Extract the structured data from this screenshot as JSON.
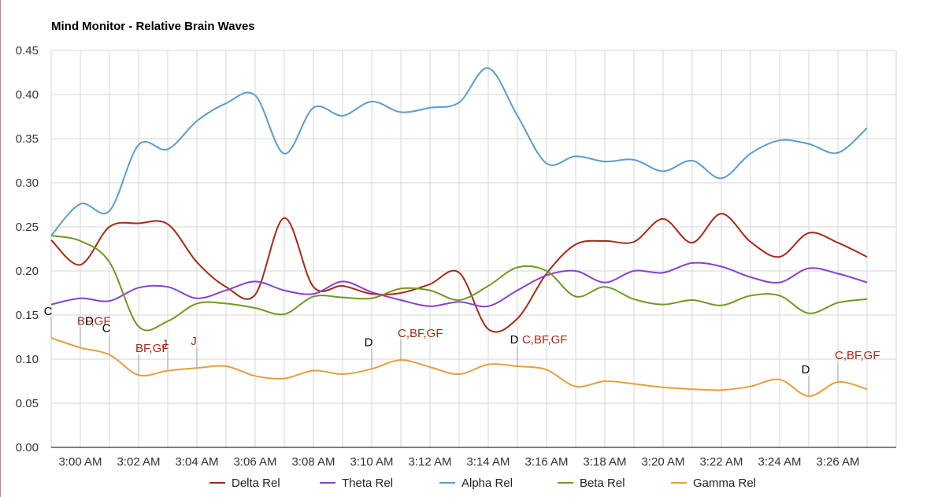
{
  "chart_data": {
    "type": "line",
    "title": "Mind Monitor - Relative Brain Waves",
    "ylim": [
      0,
      0.45
    ],
    "yticks": [
      0,
      0.05,
      0.1,
      0.15,
      0.2,
      0.25,
      0.3,
      0.35,
      0.4,
      0.45
    ],
    "ytick_labels": [
      "0.00",
      "0.05",
      "0.10",
      "0.15",
      "0.20",
      "0.25",
      "0.30",
      "0.35",
      "0.40",
      "0.45"
    ],
    "xlim": [
      -1,
      28
    ],
    "xticks": [
      0,
      2,
      4,
      6,
      8,
      10,
      12,
      14,
      16,
      18,
      20,
      22,
      24,
      26
    ],
    "xtick_labels": [
      "3:00 AM",
      "3:02 AM",
      "3:04 AM",
      "3:06 AM",
      "3:08 AM",
      "3:10 AM",
      "3:12 AM",
      "3:14 AM",
      "3:16 AM",
      "3:18 AM",
      "3:20 AM",
      "3:22 AM",
      "3:24 AM",
      "3:26 AM"
    ],
    "x": [
      -1,
      0,
      1,
      2,
      3,
      4,
      5,
      6,
      7,
      8,
      9,
      10,
      11,
      12,
      13,
      14,
      15,
      16,
      17,
      18,
      19,
      20,
      21,
      22,
      23,
      24,
      25,
      26,
      27
    ],
    "grid": true,
    "legend_position": "bottom",
    "series": [
      {
        "name": "Delta Rel",
        "color": "#a52a14",
        "values": [
          0.235,
          0.207,
          0.25,
          0.254,
          0.253,
          0.21,
          0.182,
          0.173,
          0.26,
          0.182,
          0.183,
          0.174,
          0.175,
          0.185,
          0.198,
          0.134,
          0.146,
          0.197,
          0.23,
          0.234,
          0.233,
          0.259,
          0.232,
          0.265,
          0.233,
          0.216,
          0.243,
          0.232,
          0.216
        ]
      },
      {
        "name": "Theta Rel",
        "color": "#8a3fd0",
        "values": [
          0.162,
          0.169,
          0.166,
          0.181,
          0.182,
          0.169,
          0.178,
          0.188,
          0.178,
          0.174,
          0.188,
          0.176,
          0.167,
          0.16,
          0.165,
          0.16,
          0.178,
          0.195,
          0.2,
          0.187,
          0.2,
          0.198,
          0.209,
          0.205,
          0.193,
          0.187,
          0.203,
          0.197,
          0.187
        ]
      },
      {
        "name": "Alpha Rel",
        "color": "#5b9bd0",
        "values": [
          0.24,
          0.276,
          0.268,
          0.343,
          0.338,
          0.37,
          0.39,
          0.399,
          0.333,
          0.385,
          0.376,
          0.392,
          0.38,
          0.385,
          0.391,
          0.43,
          0.376,
          0.322,
          0.33,
          0.324,
          0.326,
          0.313,
          0.325,
          0.305,
          0.333,
          0.348,
          0.344,
          0.334,
          0.362
        ]
      },
      {
        "name": "Beta Rel",
        "color": "#6e9a1e",
        "values": [
          0.24,
          0.234,
          0.21,
          0.137,
          0.143,
          0.163,
          0.163,
          0.158,
          0.151,
          0.171,
          0.17,
          0.169,
          0.18,
          0.178,
          0.167,
          0.183,
          0.204,
          0.2,
          0.171,
          0.182,
          0.168,
          0.162,
          0.167,
          0.161,
          0.172,
          0.172,
          0.152,
          0.164,
          0.168
        ]
      },
      {
        "name": "Gamma Rel",
        "color": "#e2a13e",
        "values": [
          0.124,
          0.113,
          0.105,
          0.082,
          0.087,
          0.09,
          0.092,
          0.081,
          0.078,
          0.087,
          0.083,
          0.089,
          0.099,
          0.091,
          0.083,
          0.094,
          0.092,
          0.088,
          0.069,
          0.075,
          0.072,
          0.068,
          0.066,
          0.065,
          0.069,
          0.077,
          0.058,
          0.074,
          0.066
        ]
      }
    ],
    "annotations": [
      {
        "x": -1,
        "y": 0.124,
        "text": "C",
        "color": "#000000"
      },
      {
        "x": 0,
        "y": 0.113,
        "text": "BF,GF",
        "color": "#a52a14"
      },
      {
        "x": 0,
        "y": 0.113,
        "text": "D",
        "color": "#000000"
      },
      {
        "x": 1,
        "y": 0.105,
        "text": "C",
        "color": "#000000"
      },
      {
        "x": 2,
        "y": 0.082,
        "text": "BF,GF",
        "color": "#a52a14"
      },
      {
        "x": 3,
        "y": 0.087,
        "text": "J",
        "color": "#a52a14"
      },
      {
        "x": 4,
        "y": 0.09,
        "text": "J",
        "color": "#a52a14"
      },
      {
        "x": 10,
        "y": 0.089,
        "text": "D",
        "color": "#000000"
      },
      {
        "x": 11,
        "y": 0.099,
        "text": "C,BF,GF",
        "color": "#a52a14"
      },
      {
        "x": 15,
        "y": 0.092,
        "text": "D",
        "color": "#000000"
      },
      {
        "x": 15,
        "y": 0.092,
        "text": "C,BF,GF",
        "color": "#a52a14"
      },
      {
        "x": 25,
        "y": 0.058,
        "text": "D",
        "color": "#000000"
      },
      {
        "x": 26,
        "y": 0.074,
        "text": "C,BF,GF",
        "color": "#a52a14"
      }
    ]
  }
}
